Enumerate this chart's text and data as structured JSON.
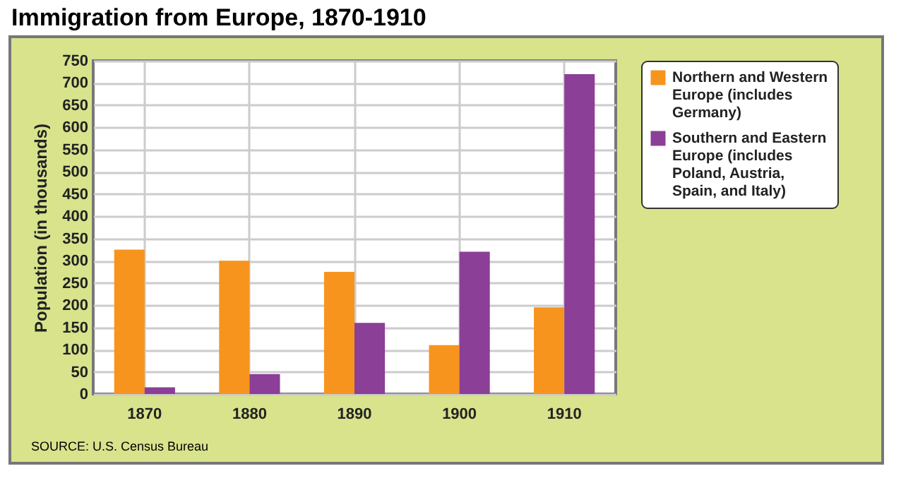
{
  "chart_data": {
    "type": "bar",
    "title": "Immigration from Europe, 1870-1910",
    "ylabel": "Population (in thousands)",
    "categories": [
      "1870",
      "1880",
      "1890",
      "1900",
      "1910"
    ],
    "series": [
      {
        "name": "Northern and Western Europe (includes Germany)",
        "color": "#f7941d",
        "values": [
          325,
          300,
          275,
          110,
          195
        ]
      },
      {
        "name": "Southern and Eastern Europe (includes Poland, Austria, Spain, and Italy)",
        "color": "#8b3f96",
        "values": [
          15,
          45,
          160,
          320,
          720
        ]
      }
    ],
    "ylim": [
      0,
      750
    ],
    "yticks": [
      0,
      50,
      100,
      150,
      200,
      250,
      300,
      350,
      400,
      450,
      500,
      550,
      600,
      650,
      700,
      750
    ],
    "grid": true,
    "legend": "right",
    "annotations": [
      "SOURCE: U.S. Census Bureau"
    ]
  }
}
